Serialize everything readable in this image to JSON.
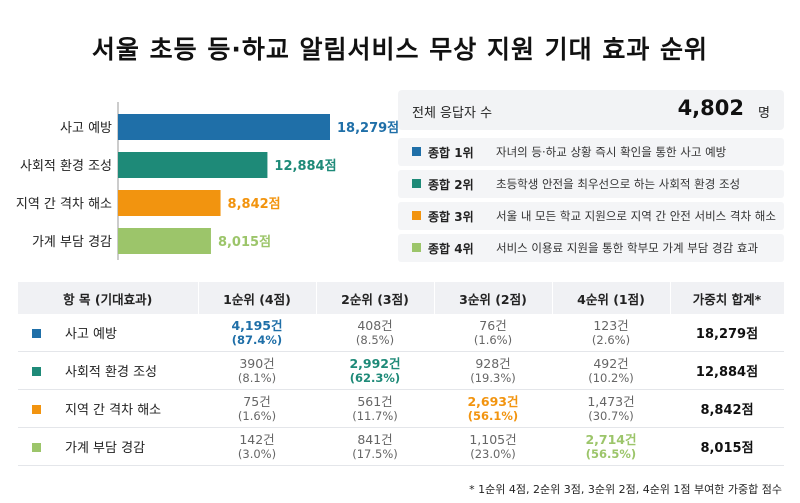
{
  "title": "서울 초등 등·하교 알림서비스 무상 지원 기대 효과 순위",
  "colors": {
    "blue": "#1f6fa8",
    "teal": "#1e8a78",
    "orange": "#f2940f",
    "green": "#9cc56a"
  },
  "chart_data": {
    "type": "bar",
    "orientation": "horizontal",
    "categories": [
      "사고 예방",
      "사회적 환경 조성",
      "지역 간 격차 해소",
      "가계 부담 경감"
    ],
    "values": [
      18279,
      12884,
      8842,
      8015
    ],
    "value_labels": [
      "18,279점",
      "12,884점",
      "8,842점",
      "8,015점"
    ],
    "bar_colors": [
      "#1f6fa8",
      "#1e8a78",
      "#f2940f",
      "#9cc56a"
    ],
    "xlim": [
      0,
      18279
    ]
  },
  "summary": {
    "total_label": "전체 응답자 수",
    "total_value": "4,802",
    "total_unit": "명",
    "ranks": [
      {
        "label": "종합 1위",
        "desc": "자녀의 등·하교 상황 즉시 확인을 통한 사고 예방",
        "color": "#1f6fa8"
      },
      {
        "label": "종합 2위",
        "desc": "초등학생 안전을 최우선으로 하는 사회적 환경 조성",
        "color": "#1e8a78"
      },
      {
        "label": "종합 3위",
        "desc": "서울 내 모든 학교 지원으로 지역 간 안전 서비스 격차 해소",
        "color": "#f2940f"
      },
      {
        "label": "종합 4위",
        "desc": "서비스 이용료 지원을 통한 학부모 가계 부담 경감 효과",
        "color": "#9cc56a"
      }
    ]
  },
  "table": {
    "headers": [
      "항  목 (기대효과)",
      "1순위 (4점)",
      "2순위 (3점)",
      "3순위 (2점)",
      "4순위 (1점)",
      "가중치 합계*"
    ],
    "rows": [
      {
        "name": "사고 예방",
        "color": "#1f6fa8",
        "highlight": 0,
        "cells": [
          {
            "count": "4,195건",
            "pct": "(87.4%)"
          },
          {
            "count": "408건",
            "pct": "(8.5%)"
          },
          {
            "count": "76건",
            "pct": "(1.6%)"
          },
          {
            "count": "123건",
            "pct": "(2.6%)"
          }
        ],
        "total": "18,279점"
      },
      {
        "name": "사회적 환경 조성",
        "color": "#1e8a78",
        "highlight": 1,
        "cells": [
          {
            "count": "390건",
            "pct": "(8.1%)"
          },
          {
            "count": "2,992건",
            "pct": "(62.3%)"
          },
          {
            "count": "928건",
            "pct": "(19.3%)"
          },
          {
            "count": "492건",
            "pct": "(10.2%)"
          }
        ],
        "total": "12,884점"
      },
      {
        "name": "지역 간 격차 해소",
        "color": "#f2940f",
        "highlight": 2,
        "cells": [
          {
            "count": "75건",
            "pct": "(1.6%)"
          },
          {
            "count": "561건",
            "pct": "(11.7%)"
          },
          {
            "count": "2,693건",
            "pct": "(56.1%)"
          },
          {
            "count": "1,473건",
            "pct": "(30.7%)"
          }
        ],
        "total": "8,842점"
      },
      {
        "name": "가계 부담 경감",
        "color": "#9cc56a",
        "highlight": 3,
        "cells": [
          {
            "count": "142건",
            "pct": "(3.0%)"
          },
          {
            "count": "841건",
            "pct": "(17.5%)"
          },
          {
            "count": "1,105건",
            "pct": "(23.0%)"
          },
          {
            "count": "2,714건",
            "pct": "(56.5%)"
          }
        ],
        "total": "8,015점"
      }
    ]
  },
  "footnote": "* 1순위 4점, 2순위 3점, 3순위 2점, 4순위 1점 부여한 가중합 점수"
}
